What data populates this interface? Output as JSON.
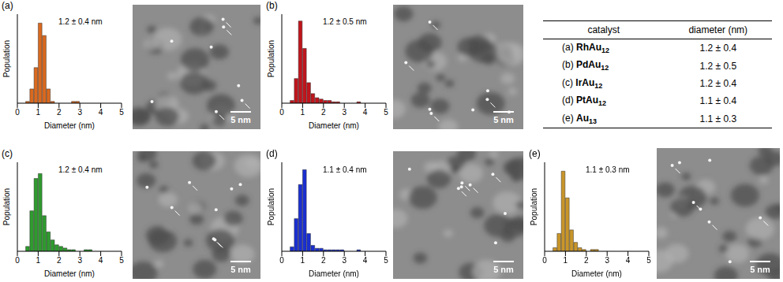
{
  "chart_data": [
    {
      "type": "bar",
      "title": "(a)",
      "annotation": "1.2 ± 0.4 nm",
      "x_label": "Diameter (nm)",
      "y_label": "Population",
      "bins": [
        0.4,
        0.6,
        0.8,
        1.0,
        1.2,
        1.4,
        1.6,
        1.8,
        2.0,
        2.2,
        2.4,
        2.6,
        2.8,
        3.0,
        3.2,
        3.4,
        3.6,
        3.8,
        4.0
      ],
      "counts": [
        1,
        8,
        20,
        45,
        38,
        8,
        1,
        0,
        0,
        0,
        0,
        1,
        1,
        0,
        0,
        0,
        0,
        0
      ],
      "color": "#d9691f",
      "xlim": [
        0,
        5
      ],
      "xticks": [
        0,
        1,
        2,
        3,
        4,
        5
      ],
      "ylim": [
        0,
        50
      ],
      "tick_labels": "x"
    },
    {
      "type": "bar",
      "title": "(b)",
      "annotation": "1.2 ± 0.5 nm",
      "x_label": "Diameter (nm)",
      "y_label": "Population",
      "bins": [
        0.4,
        0.6,
        0.8,
        1.0,
        1.2,
        1.4,
        1.6,
        1.8,
        2.0,
        2.2,
        2.4,
        2.6,
        2.8,
        3.0,
        3.2,
        3.4,
        3.6,
        3.8,
        4.0
      ],
      "counts": [
        2,
        18,
        60,
        40,
        15,
        7,
        4,
        3,
        2,
        2,
        1,
        1,
        0,
        0,
        0,
        0,
        1,
        0
      ],
      "color": "#c0151c",
      "xlim": [
        0,
        5
      ],
      "xticks": [
        0,
        1,
        2,
        3,
        4,
        5
      ],
      "ylim": [
        0,
        65
      ],
      "tick_labels": "x"
    },
    {
      "type": "bar",
      "title": "(c)",
      "annotation": "1.2 ± 0.4 nm",
      "x_label": "Diameter (nm)",
      "y_label": "Population",
      "bins": [
        0.4,
        0.6,
        0.8,
        1.0,
        1.2,
        1.4,
        1.6,
        1.8,
        2.0,
        2.2,
        2.4,
        2.6,
        2.8,
        3.0,
        3.2,
        3.4,
        3.6,
        3.8,
        4.0
      ],
      "counts": [
        3,
        25,
        45,
        48,
        22,
        12,
        7,
        4,
        3,
        2,
        1,
        1,
        0,
        0,
        1,
        1,
        0,
        0
      ],
      "color": "#2e9b2e",
      "xlim": [
        0,
        5
      ],
      "xticks": [
        0,
        1,
        2,
        3,
        4,
        5
      ],
      "ylim": [
        0,
        55
      ],
      "tick_labels": "x"
    },
    {
      "type": "bar",
      "title": "(d)",
      "annotation": "1.1 ± 0.4 nm",
      "x_label": "Diameter (nm)",
      "y_label": "Population",
      "bins": [
        0.4,
        0.6,
        0.8,
        1.0,
        1.2,
        1.4,
        1.6,
        1.8,
        2.0,
        2.2,
        2.4,
        2.6,
        2.8,
        3.0,
        3.2,
        3.4,
        3.6,
        3.8,
        4.0
      ],
      "counts": [
        3,
        22,
        45,
        55,
        12,
        4,
        2,
        2,
        1,
        1,
        1,
        1,
        1,
        0,
        0,
        0,
        1,
        0
      ],
      "color": "#1a2fd0",
      "xlim": [
        0,
        5
      ],
      "xticks": [
        0,
        1,
        2,
        3,
        4,
        5
      ],
      "ylim": [
        0,
        60
      ],
      "tick_labels": "x"
    },
    {
      "type": "bar",
      "title": "(e)",
      "annotation": "1.1 ± 0.3 nm",
      "x_label": "Diameter (nm)",
      "y_label": "Population",
      "bins": [
        0.4,
        0.6,
        0.8,
        1.0,
        1.2,
        1.4,
        1.6,
        1.8,
        2.0,
        2.2,
        2.4,
        2.6,
        2.8,
        3.0,
        3.2,
        3.4,
        3.6,
        3.8,
        4.0
      ],
      "counts": [
        2,
        10,
        45,
        30,
        12,
        5,
        2,
        1,
        0,
        1,
        1,
        0,
        0,
        0,
        0,
        0,
        0,
        0
      ],
      "color": "#c8952a",
      "xlim": [
        0,
        5
      ],
      "xticks": [
        0,
        1,
        2,
        3,
        4,
        5
      ],
      "ylim": [
        0,
        50
      ],
      "tick_labels": "x"
    }
  ],
  "images": [
    {
      "scale_bar": "5 nm"
    },
    {
      "scale_bar": "5 nm"
    },
    {
      "scale_bar": "5 nm"
    },
    {
      "scale_bar": "5 nm"
    },
    {
      "scale_bar": "5 nm"
    }
  ],
  "table": {
    "header": [
      "catalyst",
      "diameter (nm)"
    ],
    "rows": [
      {
        "label": "(a)",
        "name": "RhAu",
        "sub": "12",
        "diameter": "1.2 ± 0.4"
      },
      {
        "label": "(b)",
        "name": "PdAu",
        "sub": "12",
        "diameter": "1.2 ± 0.5"
      },
      {
        "label": "(c)",
        "name": "IrAu",
        "sub": "12",
        "diameter": "1.2 ± 0.4"
      },
      {
        "label": "(d)",
        "name": "PtAu",
        "sub": "12",
        "diameter": "1.1 ± 0.4"
      },
      {
        "label": "(e)",
        "name": "Au",
        "sub": "13",
        "diameter": "1.1 ± 0.3"
      }
    ]
  }
}
